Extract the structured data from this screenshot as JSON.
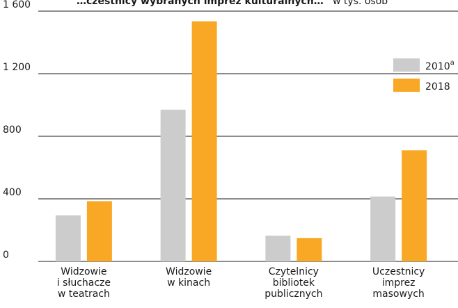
{
  "title_fragment": "…czestnicy wybranych imprez kulturalnych…",
  "title_unit_fragment": "w tys. osób",
  "chart_data": {
    "type": "bar",
    "categories": [
      [
        "Widzowie",
        "i słuchacze",
        "w teatrach"
      ],
      [
        "Widzowie",
        "w kinach"
      ],
      [
        "Czytelnicy",
        "bibliotek",
        "publicznych"
      ],
      [
        "Uczestnicy",
        "imprez",
        "masowych"
      ]
    ],
    "series": [
      {
        "name": "2010",
        "name_superscript": "a",
        "color": "#cccccc",
        "values": [
          295,
          970,
          165,
          415
        ]
      },
      {
        "name": "2018",
        "color": "#f9a825",
        "values": [
          385,
          1535,
          150,
          710
        ]
      }
    ],
    "ylim": [
      0,
      1600
    ],
    "yticks": [
      0,
      400,
      800,
      1200,
      1600
    ],
    "ytick_labels": [
      "0",
      "400",
      "800",
      "1 200",
      "1 600"
    ],
    "grid": true,
    "legend_position": "top-right"
  }
}
